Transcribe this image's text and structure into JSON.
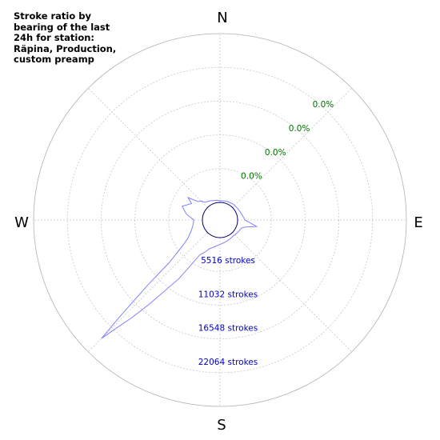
{
  "title": "Stroke ratio by bearing of the last 24h for station: Räpina, Production, custom preamp",
  "compass": {
    "n": "N",
    "e": "E",
    "s": "S",
    "w": "W"
  },
  "chart_data": {
    "type": "polar-line",
    "title": "Stroke ratio by bearing of the last 24h for station: Räpina, Production, custom preamp",
    "angle_unit": "degrees bearing",
    "radial_axis": {
      "min": 0,
      "max": 27580
    },
    "ring_labels_ratio": [
      "0.0%",
      "0.0%",
      "0.0%",
      "0.0%"
    ],
    "ring_labels_strokes": [
      "5516 strokes",
      "11032 strokes",
      "16548 strokes",
      "22064 strokes"
    ],
    "ring_values": [
      5516,
      11032,
      16548,
      22064
    ],
    "grid": true,
    "colors": {
      "strokes": "#8080ff",
      "ratio": "#000060",
      "ratio_text": "#007000",
      "count_text": "#0000cc"
    },
    "series": [
      {
        "name": "strokes",
        "bearing": [
          0,
          20,
          40,
          60,
          70,
          80,
          90,
          95,
          100,
          105,
          110,
          120,
          130,
          140,
          150,
          160,
          170,
          180,
          190,
          200,
          205,
          210,
          215,
          220,
          222,
          224,
          225,
          226,
          228,
          230,
          235,
          240,
          250,
          260,
          270,
          280,
          290,
          300,
          305,
          310,
          315,
          320,
          330,
          340,
          350,
          360
        ],
        "values": [
          300,
          400,
          500,
          600,
          700,
          900,
          1200,
          2000,
          3200,
          1500,
          900,
          700,
          600,
          500,
          600,
          700,
          900,
          1100,
          1500,
          2100,
          2900,
          3700,
          8800,
          15000,
          18500,
          22000,
          24500,
          20000,
          13000,
          8000,
          4700,
          3200,
          2100,
          1600,
          1400,
          2700,
          3700,
          2500,
          3500,
          1800,
          1500,
          900,
          700,
          500,
          400,
          300
        ]
      },
      {
        "name": "ratio",
        "bearing": [
          0,
          45,
          90,
          135,
          180,
          225,
          270,
          315,
          360
        ],
        "values": [
          0,
          0,
          0,
          0,
          0,
          0,
          0,
          0,
          0
        ]
      }
    ]
  }
}
